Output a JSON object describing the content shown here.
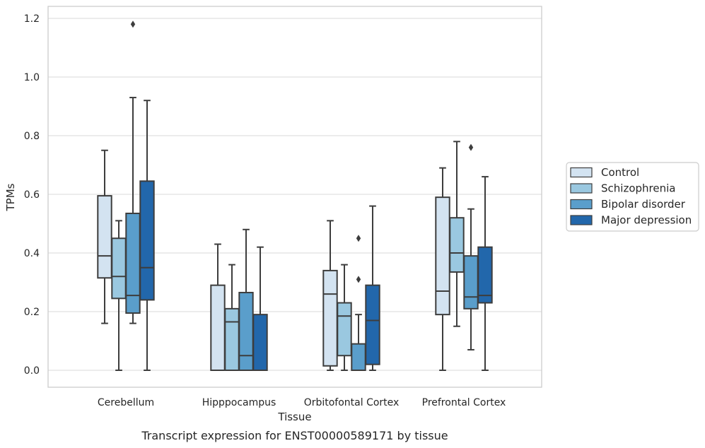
{
  "caption": "Transcript expression for ENST00000589171 by tissue",
  "chart_data": {
    "type": "boxplot",
    "title": "",
    "xlabel": "Tissue",
    "ylabel": "TPMs",
    "ylim": [
      -0.055,
      1.24
    ],
    "yticks": [
      "0.0",
      "0.2",
      "0.4",
      "0.6",
      "0.8",
      "1.0",
      "1.2"
    ],
    "grid": true,
    "legend_position": "right",
    "categories": [
      "Cerebellum",
      "Hipppocampus",
      "Orbitofontal Cortex",
      "Prefrontal Cortex"
    ],
    "series": [
      {
        "name": "Control",
        "color": "#d3e3f1",
        "boxes": [
          {
            "whislo": 0.16,
            "q1": 0.315,
            "med": 0.39,
            "q3": 0.595,
            "whishi": 0.75,
            "fliers": []
          },
          {
            "whislo": 0.0,
            "q1": 0.0,
            "med": 0.0,
            "q3": 0.29,
            "whishi": 0.43,
            "fliers": []
          },
          {
            "whislo": 0.0,
            "q1": 0.015,
            "med": 0.26,
            "q3": 0.34,
            "whishi": 0.51,
            "fliers": []
          },
          {
            "whislo": 0.0,
            "q1": 0.19,
            "med": 0.27,
            "q3": 0.59,
            "whishi": 0.69,
            "fliers": []
          }
        ]
      },
      {
        "name": "Schizophrenia",
        "color": "#9ac8e0",
        "boxes": [
          {
            "whislo": 0.0,
            "q1": 0.245,
            "med": 0.32,
            "q3": 0.45,
            "whishi": 0.51,
            "fliers": []
          },
          {
            "whislo": 0.0,
            "q1": 0.0,
            "med": 0.165,
            "q3": 0.21,
            "whishi": 0.36,
            "fliers": []
          },
          {
            "whislo": 0.0,
            "q1": 0.05,
            "med": 0.185,
            "q3": 0.23,
            "whishi": 0.36,
            "fliers": []
          },
          {
            "whislo": 0.15,
            "q1": 0.335,
            "med": 0.4,
            "q3": 0.52,
            "whishi": 0.78,
            "fliers": []
          }
        ]
      },
      {
        "name": "Bipolar disorder",
        "color": "#5a9ecb",
        "boxes": [
          {
            "whislo": 0.16,
            "q1": 0.195,
            "med": 0.255,
            "q3": 0.535,
            "whishi": 0.93,
            "fliers": [
              1.18
            ]
          },
          {
            "whislo": 0.0,
            "q1": 0.0,
            "med": 0.05,
            "q3": 0.265,
            "whishi": 0.48,
            "fliers": []
          },
          {
            "whislo": 0.0,
            "q1": 0.0,
            "med": 0.0,
            "q3": 0.09,
            "whishi": 0.19,
            "fliers": [
              0.31,
              0.45
            ]
          },
          {
            "whislo": 0.07,
            "q1": 0.21,
            "med": 0.25,
            "q3": 0.39,
            "whishi": 0.55,
            "fliers": [
              0.76
            ]
          }
        ]
      },
      {
        "name": "Major depression",
        "color": "#2267ab",
        "boxes": [
          {
            "whislo": 0.0,
            "q1": 0.24,
            "med": 0.35,
            "q3": 0.645,
            "whishi": 0.92,
            "fliers": []
          },
          {
            "whislo": 0.0,
            "q1": 0.0,
            "med": 0.0,
            "q3": 0.19,
            "whishi": 0.42,
            "fliers": []
          },
          {
            "whislo": 0.0,
            "q1": 0.02,
            "med": 0.17,
            "q3": 0.29,
            "whishi": 0.56,
            "fliers": []
          },
          {
            "whislo": 0.0,
            "q1": 0.23,
            "med": 0.255,
            "q3": 0.42,
            "whishi": 0.66,
            "fliers": []
          }
        ]
      }
    ]
  }
}
